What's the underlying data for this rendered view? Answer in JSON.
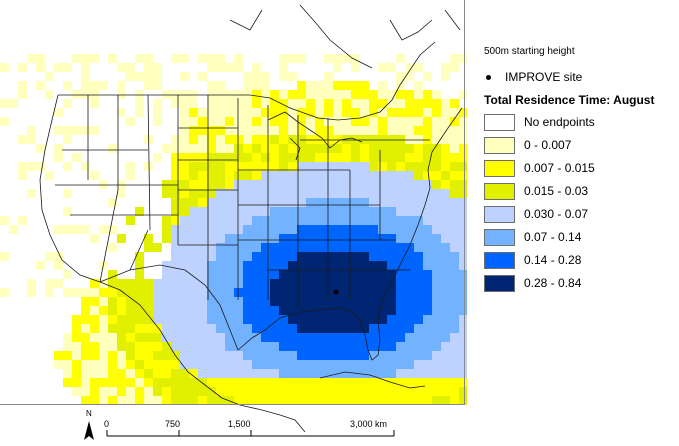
{
  "map": {
    "source_site": "IMPROVE site",
    "north_label": "N",
    "scalebar": {
      "ticks": [
        "0",
        "750",
        "1,500",
        "3,000 km"
      ]
    }
  },
  "legend": {
    "height_note": "500m starting height",
    "site_label": "IMPROVE site",
    "title": "Total Residence Time: August",
    "classes": [
      {
        "label": "No endpoints",
        "color": "#ffffff"
      },
      {
        "label": "0 - 0.007",
        "color": "#ffffbe"
      },
      {
        "label": "0.007 - 0.015",
        "color": "#ffff00"
      },
      {
        "label": "0.015 - 0.03",
        "color": "#e1f000"
      },
      {
        "label": "0.030 - 0.07",
        "color": "#bed2ff"
      },
      {
        "label": "0.07 - 0.14",
        "color": "#73b2ff"
      },
      {
        "label": "0.14 - 0.28",
        "color": "#0064ff"
      },
      {
        "label": "0.28 - 0.84",
        "color": "#002673"
      }
    ]
  }
}
